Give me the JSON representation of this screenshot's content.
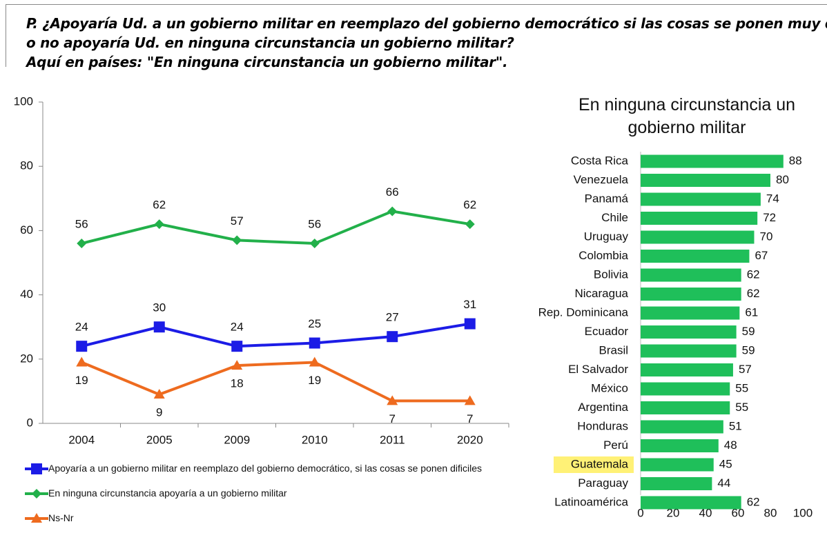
{
  "header": {
    "lines": [
      "P. ¿Apoyaría Ud. a un gobierno militar en reemplazo del gobierno democrático si las cosas se ponen muy difíciles,",
      "o no apoyaría Ud. en ninguna circunstancia un gobierno militar?",
      "Aquí en países: \"En ninguna circunstancia un gobierno militar\"."
    ]
  },
  "chart_data": [
    {
      "type": "line",
      "categories": [
        "2004",
        "2005",
        "2009",
        "2010",
        "2011",
        "2020"
      ],
      "ylim": [
        0,
        100
      ],
      "yticks": [
        0,
        20,
        40,
        60,
        80,
        100
      ],
      "series": [
        {
          "name": "Apoyaría a un gobierno militar en reemplazo del gobierno democrático, si las cosas se ponen dificiles",
          "color": "#1c1ce6",
          "marker": "square",
          "label_position": "above",
          "values": [
            24,
            30,
            24,
            25,
            27,
            31
          ]
        },
        {
          "name": "En ninguna circunstancia apoyaría a un gobierno militar",
          "color": "#22b04a",
          "marker": "diamond",
          "label_position": "above",
          "values": [
            56,
            62,
            57,
            56,
            66,
            62
          ]
        },
        {
          "name": "Ns-Nr",
          "color": "#ee6b1f",
          "marker": "triangle",
          "label_position": "below",
          "values": [
            19,
            9,
            18,
            19,
            7,
            7
          ]
        }
      ]
    },
    {
      "type": "hbar",
      "title": "En ninguna circunstancia un gobierno militar",
      "categories": [
        "Costa Rica",
        "Venezuela",
        "Panamá",
        "Chile",
        "Uruguay",
        "Colombia",
        "Bolivia",
        "Nicaragua",
        "Rep. Dominicana",
        "Ecuador",
        "Brasil",
        "El Salvador",
        "México",
        "Argentina",
        "Honduras",
        "Perú",
        "Guatemala",
        "Paraguay",
        "Latinoamérica"
      ],
      "values": [
        88,
        80,
        74,
        72,
        70,
        67,
        62,
        62,
        61,
        59,
        59,
        57,
        55,
        55,
        51,
        48,
        45,
        44,
        62
      ],
      "color": "#1fbf5a",
      "highlight": {
        "index": 16,
        "color": "#fff176"
      },
      "xlim": [
        0,
        100
      ],
      "xticks": [
        0,
        20,
        40,
        60,
        80,
        100
      ]
    }
  ]
}
